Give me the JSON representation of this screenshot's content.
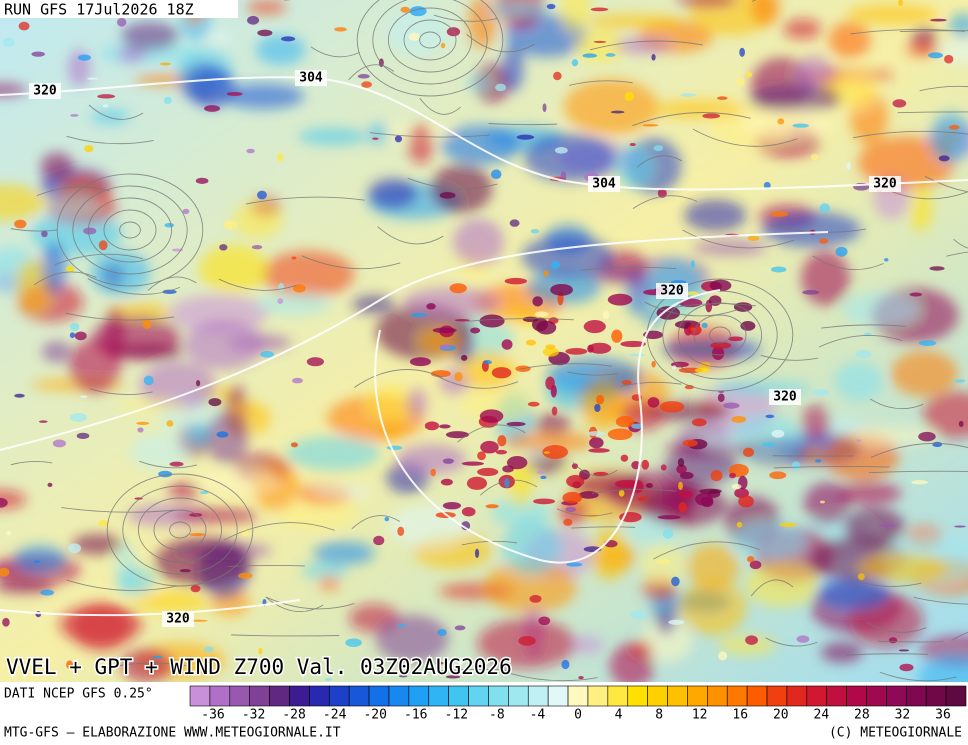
{
  "header": {
    "run": "RUN GFS 17Jul2026 18Z"
  },
  "map": {
    "title": "VVEL + GPT + WIND Z700 Val. 03Z02AUG2026",
    "contour_labels": [
      "320",
      "304",
      "304",
      "320",
      "320",
      "320",
      "320"
    ]
  },
  "legend": {
    "source": "DATI NCEP GFS 0.25°",
    "ticks": [
      -36,
      -32,
      -28,
      -24,
      -20,
      -16,
      -12,
      -8,
      -4,
      0,
      4,
      8,
      12,
      16,
      20,
      24,
      28,
      32,
      36
    ],
    "colors": [
      "#c890d8",
      "#b070c8",
      "#9858b0",
      "#804098",
      "#602880",
      "#3c1c90",
      "#2828b0",
      "#1c40c8",
      "#1858d8",
      "#1470e8",
      "#1888f0",
      "#20a0f4",
      "#30b4f4",
      "#40c4f0",
      "#60d4f0",
      "#80e0f0",
      "#a0e8f0",
      "#c0f0f4",
      "#e0f8f8",
      "#fff8c0",
      "#fff080",
      "#ffe840",
      "#ffe000",
      "#ffd000",
      "#ffc000",
      "#ffa800",
      "#ff9000",
      "#ff7800",
      "#ff5c00",
      "#f04010",
      "#e02820",
      "#d01830",
      "#c01040",
      "#b00848",
      "#a00850",
      "#900858",
      "#800850",
      "#700848",
      "#600840"
    ]
  },
  "footer": {
    "left": "MTG-GFS — ELABORAZIONE WWW.METEOGIORNALE.IT",
    "right": "(C) METEOGIORNALE"
  }
}
